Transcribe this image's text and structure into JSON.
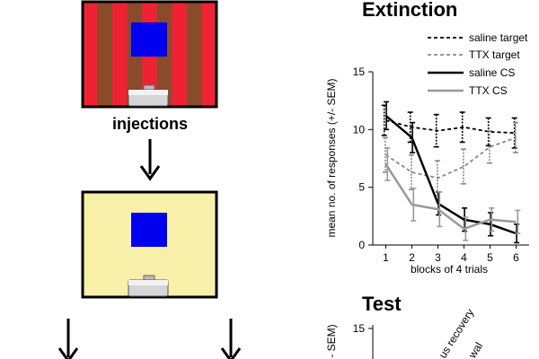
{
  "diagram": {
    "step1_label": "injections",
    "colors": {
      "stripe_red": "#ee2233",
      "stripe_brown": "#8a4b2a",
      "context_yellow": "#f8f0a8",
      "light_blue": "#0000ee"
    }
  },
  "chart_data": [
    {
      "type": "line",
      "title": "Extinction",
      "xlabel": "blocks of 4 trials",
      "ylabel": "mean no. of responses (+/- SEM)",
      "x": [
        1,
        2,
        3,
        4,
        5,
        6
      ],
      "xlim": [
        0.5,
        6.5
      ],
      "ylim": [
        0,
        15
      ],
      "yticks": [
        0,
        5,
        10,
        15
      ],
      "xticks": [
        1,
        2,
        3,
        4,
        5,
        6
      ],
      "series": [
        {
          "name": "saline target",
          "values": [
            10.8,
            10.2,
            9.9,
            10.2,
            9.8,
            9.7
          ],
          "err": [
            1.3,
            1.3,
            1.4,
            1.3,
            1.2,
            1.3
          ],
          "color": "#000000",
          "dash": "dashed"
        },
        {
          "name": "TTX target",
          "values": [
            7.8,
            6.3,
            5.8,
            6.8,
            8.5,
            9.3
          ],
          "err": [
            1.5,
            1.5,
            1.5,
            1.5,
            1.4,
            1.3
          ],
          "color": "#888888",
          "dash": "dashed"
        },
        {
          "name": "saline CS",
          "values": [
            11.2,
            9.3,
            3.6,
            2.2,
            1.8,
            1.0
          ],
          "err": [
            1.2,
            1.3,
            1.0,
            1.0,
            1.0,
            0.8
          ],
          "color": "#000000",
          "dash": "solid"
        },
        {
          "name": "TTX CS",
          "values": [
            7.0,
            3.5,
            3.1,
            1.4,
            2.2,
            2.0
          ],
          "err": [
            1.4,
            1.4,
            1.5,
            1.0,
            1.0,
            1.0
          ],
          "color": "#999999",
          "dash": "solid"
        }
      ]
    },
    {
      "type": "bar",
      "title": "Test",
      "ylabel_visible": "- SEM)",
      "ytick_visible": "15",
      "rotated_labels": [
        "us recovery",
        "wal"
      ]
    }
  ]
}
